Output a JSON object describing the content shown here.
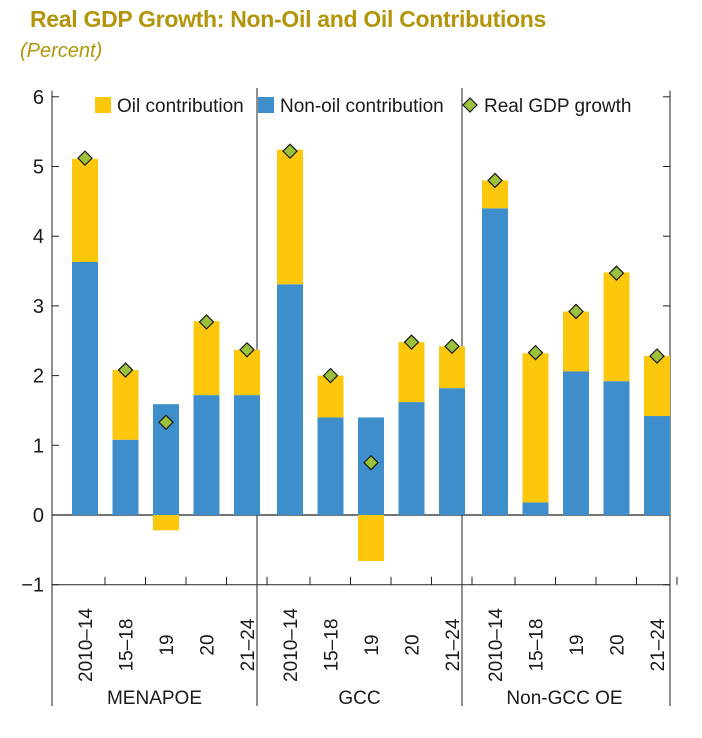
{
  "title": "Real GDP Growth: Non-Oil and Oil Contributions",
  "subtitle": "(Percent)",
  "colors": {
    "oil": "#fdc70c",
    "nonoil": "#3d8ecb",
    "marker": "#9cc23c",
    "title": "#b3950b"
  },
  "chart_data": {
    "type": "bar",
    "stacked": true,
    "ylim": [
      -1,
      6
    ],
    "yticks": [
      "−1",
      "0",
      "1",
      "2",
      "3",
      "4",
      "5",
      "6"
    ],
    "ytick_values": [
      -1,
      0,
      1,
      2,
      3,
      4,
      5,
      6
    ],
    "legend": {
      "placement": "top",
      "entries": [
        "Oil contribution",
        "Non-oil contribution",
        "Real GDP growth"
      ]
    },
    "groups": [
      {
        "name": "MENAPOE",
        "categories": [
          "2010–14",
          "15–18",
          "19",
          "20",
          "21–24"
        ],
        "non_oil": [
          3.63,
          1.08,
          1.59,
          1.72,
          1.72
        ],
        "oil": [
          1.48,
          1.0,
          -0.22,
          1.06,
          0.65
        ],
        "gdp": [
          5.12,
          2.08,
          1.33,
          2.77,
          2.37
        ]
      },
      {
        "name": "GCC",
        "categories": [
          "2010–14",
          "15–18",
          "19",
          "20",
          "21–24"
        ],
        "non_oil": [
          3.31,
          1.4,
          1.4,
          1.62,
          1.82
        ],
        "oil": [
          1.93,
          0.6,
          -0.66,
          0.86,
          0.6
        ],
        "gdp": [
          5.22,
          2.0,
          0.75,
          2.48,
          2.42
        ]
      },
      {
        "name": "Non-GCC OE",
        "categories": [
          "2010–14",
          "15–18",
          "19",
          "20",
          "21–24"
        ],
        "non_oil": [
          4.4,
          0.18,
          2.06,
          1.92,
          1.42
        ],
        "oil": [
          0.4,
          2.14,
          0.86,
          1.56,
          0.86
        ],
        "gdp": [
          4.8,
          2.33,
          2.92,
          3.47,
          2.28
        ]
      }
    ],
    "series": [
      {
        "name": "Non-oil contribution",
        "key": "non_oil"
      },
      {
        "name": "Oil contribution",
        "key": "oil"
      },
      {
        "name": "Real GDP growth",
        "key": "gdp"
      }
    ]
  }
}
